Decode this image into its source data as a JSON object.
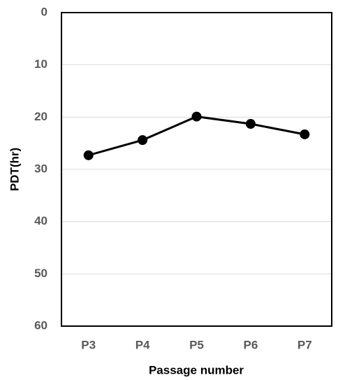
{
  "chart_data": {
    "type": "line",
    "x_label": "Passage number",
    "y_label": "PDT(hr)",
    "categories": [
      "P3",
      "P4",
      "P5",
      "P6",
      "P7"
    ],
    "values": [
      27.3,
      24.4,
      19.9,
      21.3,
      23.3
    ],
    "color": "#000000",
    "ylim": [
      0,
      60
    ],
    "y_inverted": true,
    "yticks": [
      0,
      10,
      20,
      30,
      40,
      50,
      60
    ],
    "grid": true
  }
}
